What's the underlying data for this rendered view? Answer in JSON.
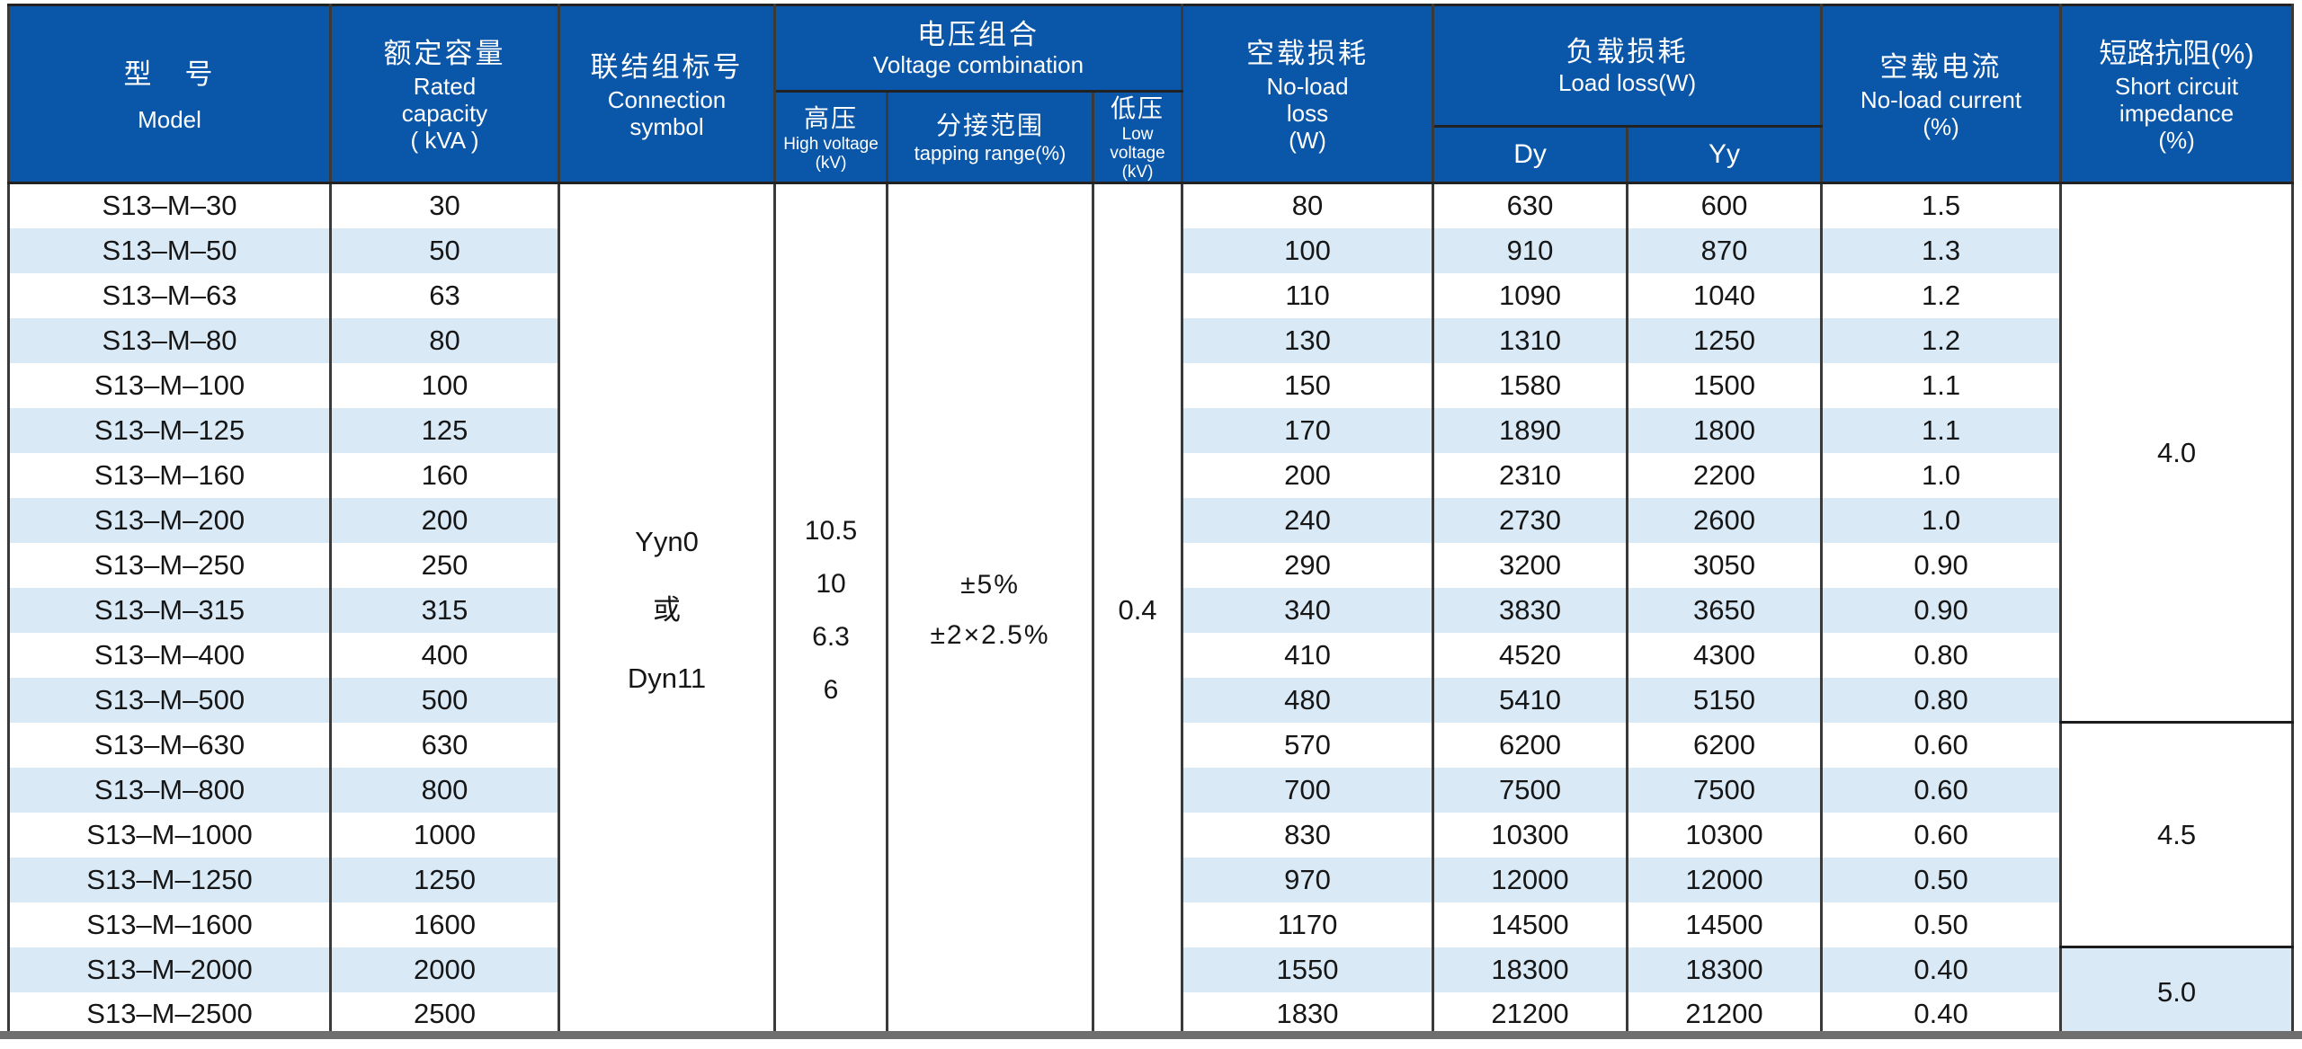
{
  "colors": {
    "header_bg": "#0a56a8",
    "stripe": "#d9e9f6",
    "grid": "#3a3a3a",
    "bottom_bar": "#6f6f6f"
  },
  "table": {
    "header": {
      "model": {
        "zh": "型　号",
        "en": "Model"
      },
      "rated_capacity": {
        "zh": "额定容量",
        "en1": "Rated",
        "en2": "capacity",
        "unit": "( kVA )"
      },
      "connection": {
        "zh": "联结组标号",
        "en1": "Connection",
        "en2": "symbol"
      },
      "voltage_combination": {
        "zh": "电压组合",
        "en": "Voltage combination"
      },
      "high_voltage": {
        "zh": "高压",
        "en": "High voltage",
        "unit": "(kV)"
      },
      "tapping_range": {
        "zh": "分接范围",
        "en": "tapping range(%)"
      },
      "low_voltage": {
        "zh": "低压",
        "en": "Low voltage",
        "unit": "(kV)"
      },
      "no_load_loss": {
        "zh": "空载损耗",
        "en1": "No-load",
        "en2": "loss",
        "unit": "(W)"
      },
      "load_loss": {
        "zh": "负载损耗",
        "en": "Load loss(W)"
      },
      "dy": "Dy",
      "yy": "Yy",
      "no_load_current": {
        "zh": "空载电流",
        "en": "No-load current",
        "unit": "(%)"
      },
      "impedance": {
        "zh": "短路抗阻(%)",
        "en1": "Short circuit",
        "en2": "impedance",
        "unit": "(%)"
      }
    },
    "merged": {
      "connection": [
        "Yyn0",
        "或",
        "Dyn11"
      ],
      "high_voltage": [
        "10.5",
        "10",
        "6.3",
        "6"
      ],
      "tapping_range": [
        "±5%",
        "±2×2.5%"
      ],
      "low_voltage": "0.4"
    },
    "impedance_groups": [
      {
        "value": "4.0",
        "span": 12
      },
      {
        "value": "4.5",
        "span": 5
      },
      {
        "value": "5.0",
        "span": 2
      }
    ],
    "rows": [
      {
        "model": "S13–M–30",
        "capacity": "30",
        "no_load_loss": "80",
        "dy": "630",
        "yy": "600",
        "no_load_current": "1.5"
      },
      {
        "model": "S13–M–50",
        "capacity": "50",
        "no_load_loss": "100",
        "dy": "910",
        "yy": "870",
        "no_load_current": "1.3"
      },
      {
        "model": "S13–M–63",
        "capacity": "63",
        "no_load_loss": "110",
        "dy": "1090",
        "yy": "1040",
        "no_load_current": "1.2"
      },
      {
        "model": "S13–M–80",
        "capacity": "80",
        "no_load_loss": "130",
        "dy": "1310",
        "yy": "1250",
        "no_load_current": "1.2"
      },
      {
        "model": "S13–M–100",
        "capacity": "100",
        "no_load_loss": "150",
        "dy": "1580",
        "yy": "1500",
        "no_load_current": "1.1"
      },
      {
        "model": "S13–M–125",
        "capacity": "125",
        "no_load_loss": "170",
        "dy": "1890",
        "yy": "1800",
        "no_load_current": "1.1"
      },
      {
        "model": "S13–M–160",
        "capacity": "160",
        "no_load_loss": "200",
        "dy": "2310",
        "yy": "2200",
        "no_load_current": "1.0"
      },
      {
        "model": "S13–M–200",
        "capacity": "200",
        "no_load_loss": "240",
        "dy": "2730",
        "yy": "2600",
        "no_load_current": "1.0"
      },
      {
        "model": "S13–M–250",
        "capacity": "250",
        "no_load_loss": "290",
        "dy": "3200",
        "yy": "3050",
        "no_load_current": "0.90"
      },
      {
        "model": "S13–M–315",
        "capacity": "315",
        "no_load_loss": "340",
        "dy": "3830",
        "yy": "3650",
        "no_load_current": "0.90"
      },
      {
        "model": "S13–M–400",
        "capacity": "400",
        "no_load_loss": "410",
        "dy": "4520",
        "yy": "4300",
        "no_load_current": "0.80"
      },
      {
        "model": "S13–M–500",
        "capacity": "500",
        "no_load_loss": "480",
        "dy": "5410",
        "yy": "5150",
        "no_load_current": "0.80"
      },
      {
        "model": "S13–M–630",
        "capacity": "630",
        "no_load_loss": "570",
        "dy": "6200",
        "yy": "6200",
        "no_load_current": "0.60"
      },
      {
        "model": "S13–M–800",
        "capacity": "800",
        "no_load_loss": "700",
        "dy": "7500",
        "yy": "7500",
        "no_load_current": "0.60"
      },
      {
        "model": "S13–M–1000",
        "capacity": "1000",
        "no_load_loss": "830",
        "dy": "10300",
        "yy": "10300",
        "no_load_current": "0.60"
      },
      {
        "model": "S13–M–1250",
        "capacity": "1250",
        "no_load_loss": "970",
        "dy": "12000",
        "yy": "12000",
        "no_load_current": "0.50"
      },
      {
        "model": "S13–M–1600",
        "capacity": "1600",
        "no_load_loss": "1170",
        "dy": "14500",
        "yy": "14500",
        "no_load_current": "0.50"
      },
      {
        "model": "S13–M–2000",
        "capacity": "2000",
        "no_load_loss": "1550",
        "dy": "18300",
        "yy": "18300",
        "no_load_current": "0.40"
      },
      {
        "model": "S13–M–2500",
        "capacity": "2500",
        "no_load_loss": "1830",
        "dy": "21200",
        "yy": "21200",
        "no_load_current": "0.40"
      }
    ]
  }
}
